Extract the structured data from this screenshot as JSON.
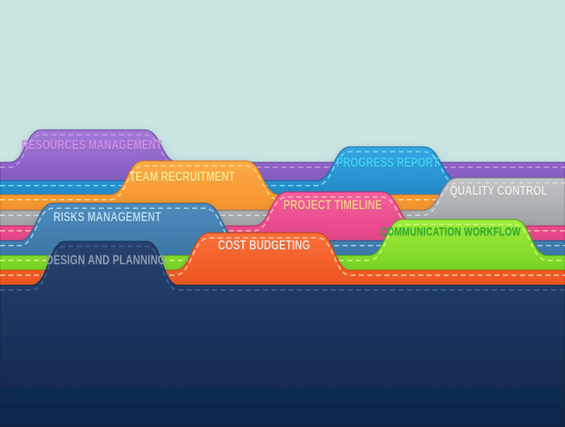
{
  "background_color": "#c9e5e2",
  "tabs": [
    {
      "id": "resources-management",
      "label": "RESOURCES MANAGEMENT",
      "fill_top": "#a47ad9",
      "fill_bottom": "#6a3ea8",
      "edge": "#5c348f",
      "text_color": "#cd8fe8",
      "stitch_color": "#c89ae8"
    },
    {
      "id": "progress-report",
      "label": "PROGRESS REPORT",
      "fill_top": "#35a7e3",
      "fill_bottom": "#0e6cab",
      "edge": "#0b5c95",
      "text_color": "#3fd2f7",
      "stitch_color": "#7fd7f5"
    },
    {
      "id": "team-recruitment",
      "label": "TEAM RECRUITMENT",
      "fill_top": "#fbab49",
      "fill_bottom": "#f07c0d",
      "edge": "#d86c08",
      "text_color": "#fde98e",
      "stitch_color": "#ffd98e"
    },
    {
      "id": "quality-control",
      "label": "QUALITY CONTROL",
      "fill_top": "#c2c4c6",
      "fill_bottom": "#7e8184",
      "edge": "#6f7275",
      "text_color": "#ebecec",
      "stitch_color": "#dcdcdc"
    },
    {
      "id": "project-timeline",
      "label": "PROJECT TIMELINE",
      "fill_top": "#f45f9f",
      "fill_bottom": "#d62a6e",
      "edge": "#b81f5b",
      "text_color": "#f9c788",
      "stitch_color": "#f5c3ad"
    },
    {
      "id": "risks-management",
      "label": "RISKS MANAGEMENT",
      "fill_top": "#4f8cbd",
      "fill_bottom": "#2a6494",
      "edge": "#1f5681",
      "text_color": "#b5dbf1",
      "stitch_color": "#a9d6ef"
    },
    {
      "id": "communication-workflow",
      "label": "COMMUNICATION WORKFLOW",
      "fill_top": "#a0ec3d",
      "fill_bottom": "#54be0b",
      "edge": "#46a408",
      "text_color": "#2fae35",
      "stitch_color": "#d5fa7d"
    },
    {
      "id": "cost-budgeting",
      "label": "COST BUDGETING",
      "fill_top": "#f9703a",
      "fill_bottom": "#e33d05",
      "edge": "#c43504",
      "text_color": "#efe3da",
      "stitch_color": "#f8cfae"
    },
    {
      "id": "design-and-planning",
      "label": "DESIGN AND PLANNING",
      "fill_top": "#27426f",
      "fill_bottom": "#0a2348",
      "edge": "#10203c",
      "text_color": "#8e9db5",
      "stitch_color": "#3e6899"
    }
  ]
}
